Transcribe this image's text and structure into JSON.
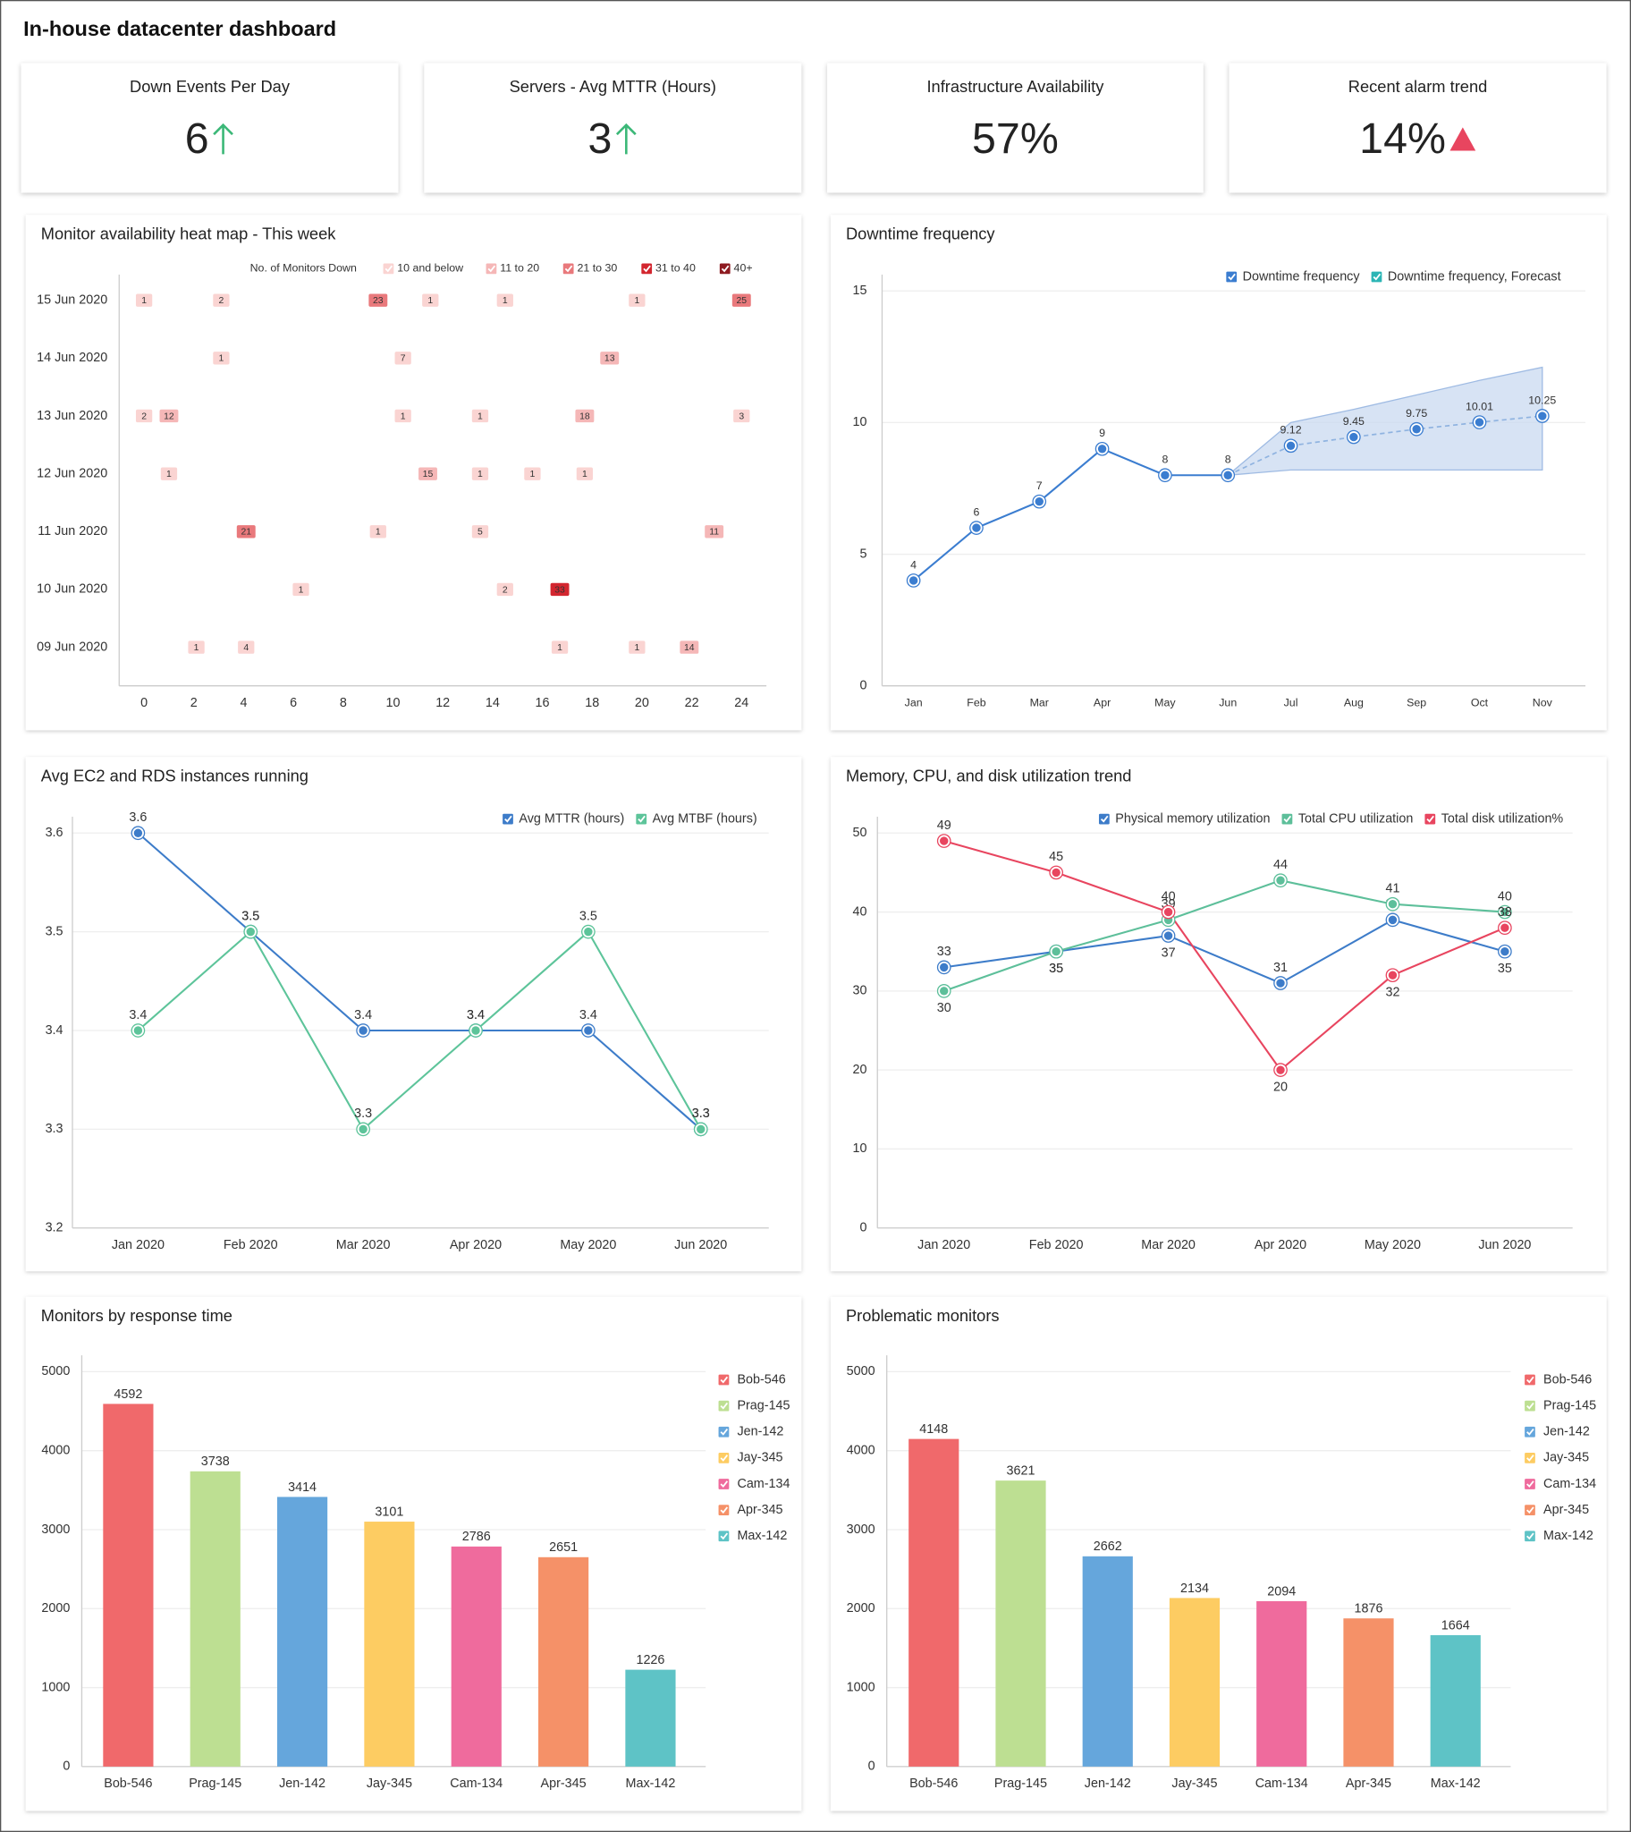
{
  "title": "In-house datacenter dashboard",
  "kpis": [
    {
      "label": "Down Events Per Day",
      "value": "6"
    },
    {
      "label": "Servers - Avg MTTR (Hours)",
      "value": "3"
    },
    {
      "label": "Infrastructure Availability",
      "value": "57%"
    },
    {
      "label": "Recent alarm trend",
      "value": "14%"
    }
  ],
  "chart_data": [
    {
      "type": "heatmap",
      "title": "Monitor availability heat map - This week",
      "legend_title": "No. of Monitors Down",
      "scale": [
        {
          "label": "10 and below",
          "upto": 10,
          "color": "#fad4d2"
        },
        {
          "label": "11 to 20",
          "upto": 20,
          "color": "#f5b7b7"
        },
        {
          "label": "21 to 30",
          "upto": 30,
          "color": "#e9797c"
        },
        {
          "label": "31 to 40",
          "upto": 40,
          "color": "#d3262f"
        },
        {
          "label": "40+",
          "upto": null,
          "color": "#8e1b21"
        }
      ],
      "xlim": [
        -1,
        25
      ],
      "xticks": [
        0,
        2,
        4,
        6,
        8,
        10,
        12,
        14,
        16,
        18,
        20,
        22,
        24
      ],
      "series": [
        {
          "name": "15 Jun 2020",
          "x": [
            0,
            3.1,
            9.4,
            11.5,
            14.5,
            19.8,
            24
          ],
          "values": [
            1,
            2,
            23,
            1,
            1,
            1,
            25
          ]
        },
        {
          "name": "14 Jun 2020",
          "x": [
            3.1,
            10.4,
            18.7
          ],
          "values": [
            1,
            7,
            13
          ]
        },
        {
          "name": "13 Jun 2020",
          "x": [
            0,
            1,
            10.4,
            13.5,
            17.7,
            24
          ],
          "values": [
            2,
            12,
            1,
            1,
            18,
            3
          ]
        },
        {
          "name": "12 Jun 2020",
          "x": [
            1,
            11.4,
            13.5,
            15.6,
            17.7
          ],
          "values": [
            1,
            15,
            1,
            1,
            1
          ]
        },
        {
          "name": "11 Jun 2020",
          "x": [
            4.1,
            9.4,
            13.5,
            22.9
          ],
          "values": [
            21,
            1,
            5,
            11
          ]
        },
        {
          "name": "10 Jun 2020",
          "x": [
            6.3,
            14.5,
            16.7
          ],
          "values": [
            1,
            2,
            33
          ]
        },
        {
          "name": "09 Jun 2020",
          "x": [
            2.1,
            4.1,
            16.7,
            19.8,
            21.9
          ],
          "values": [
            1,
            4,
            1,
            1,
            14
          ]
        }
      ]
    },
    {
      "type": "line",
      "title": "Downtime frequency",
      "categories": [
        "Jan",
        "Feb",
        "Mar",
        "Apr",
        "May",
        "Jun",
        "Jul",
        "Aug",
        "Sep",
        "Oct",
        "Nov"
      ],
      "ylim": [
        0,
        15
      ],
      "yticks": [
        0,
        5,
        10,
        15
      ],
      "grid": true,
      "series": [
        {
          "name": "Downtime frequency",
          "color": "#3b7dd0",
          "values": [
            4,
            6,
            7,
            9,
            8,
            8,
            null,
            null,
            null,
            null,
            null
          ]
        },
        {
          "name": "Downtime frequency, Forecast",
          "color": "#2cb5b5",
          "line_color": "#8fb3e0",
          "marker_color": "#3b7dd0",
          "dashed": true,
          "values": [
            null,
            null,
            null,
            null,
            null,
            null,
            9.12,
            9.45,
            9.75,
            10.01,
            10.25
          ]
        }
      ],
      "band": {
        "color": "#c9d9f0",
        "upper": [
          null,
          null,
          null,
          null,
          null,
          8,
          10,
          10.5,
          11.05,
          11.6,
          12.1
        ],
        "lower": [
          null,
          null,
          null,
          null,
          null,
          8,
          8.2,
          8.2,
          8.2,
          8.2,
          8.2
        ]
      }
    },
    {
      "type": "line",
      "title": "Avg EC2 and RDS instances running",
      "categories": [
        "Jan 2020",
        "Feb 2020",
        "Mar 2020",
        "Apr 2020",
        "May 2020",
        "Jun 2020"
      ],
      "ylim": [
        3.2,
        3.6
      ],
      "yticks": [
        3.2,
        3.3,
        3.4,
        3.5,
        3.6
      ],
      "grid": true,
      "series": [
        {
          "name": "Avg MTTR (hours)",
          "color": "#3d7cc9",
          "values": [
            3.6,
            3.5,
            3.4,
            3.4,
            3.4,
            3.3
          ]
        },
        {
          "name": "Avg MTBF (hours)",
          "color": "#5dc49a",
          "values": [
            3.4,
            3.5,
            3.3,
            3.4,
            3.5,
            3.3
          ]
        }
      ]
    },
    {
      "type": "line",
      "title": "Memory, CPU, and disk utilization trend",
      "categories": [
        "Jan 2020",
        "Feb 2020",
        "Mar 2020",
        "Apr 2020",
        "May 2020",
        "Jun 2020"
      ],
      "ylim": [
        0,
        50
      ],
      "yticks": [
        0,
        10,
        20,
        30,
        40,
        50
      ],
      "grid": true,
      "series": [
        {
          "name": "Physical memory utilization",
          "color": "#3d7cc9",
          "values": [
            33,
            35,
            37,
            31,
            39,
            35
          ]
        },
        {
          "name": "Total CPU utilization",
          "color": "#5dbf9a",
          "values": [
            30,
            35,
            39,
            44,
            41,
            40
          ]
        },
        {
          "name": "Total disk utilization%",
          "color": "#e8455f",
          "values": [
            49,
            45,
            40,
            20,
            32,
            38
          ]
        }
      ]
    },
    {
      "type": "bar",
      "title": "Monitors by response time",
      "categories": [
        "Bob-546",
        "Prag-145",
        "Jen-142",
        "Jay-345",
        "Cam-134",
        "Apr-345",
        "Max-142"
      ],
      "values": [
        4592,
        3738,
        3414,
        3101,
        2786,
        2651,
        1226
      ],
      "colors": [
        "#f0696b",
        "#bddf92",
        "#65a6dc",
        "#fdcc62",
        "#ef6b9d",
        "#f59168",
        "#5ec3c6"
      ],
      "ylim": [
        0,
        5000
      ],
      "yticks": [
        0,
        1000,
        2000,
        3000,
        4000,
        5000
      ],
      "grid": true
    },
    {
      "type": "bar",
      "title": "Problematic monitors",
      "categories": [
        "Bob-546",
        "Prag-145",
        "Jen-142",
        "Jay-345",
        "Cam-134",
        "Apr-345",
        "Max-142"
      ],
      "values": [
        4148,
        3621,
        2662,
        2134,
        2094,
        1876,
        1664
      ],
      "colors": [
        "#f0696b",
        "#bddf92",
        "#65a6dc",
        "#fdcc62",
        "#ef6b9d",
        "#f59168",
        "#5ec3c6"
      ],
      "ylim": [
        0,
        5000
      ],
      "yticks": [
        0,
        1000,
        2000,
        3000,
        4000,
        5000
      ],
      "grid": true
    }
  ]
}
